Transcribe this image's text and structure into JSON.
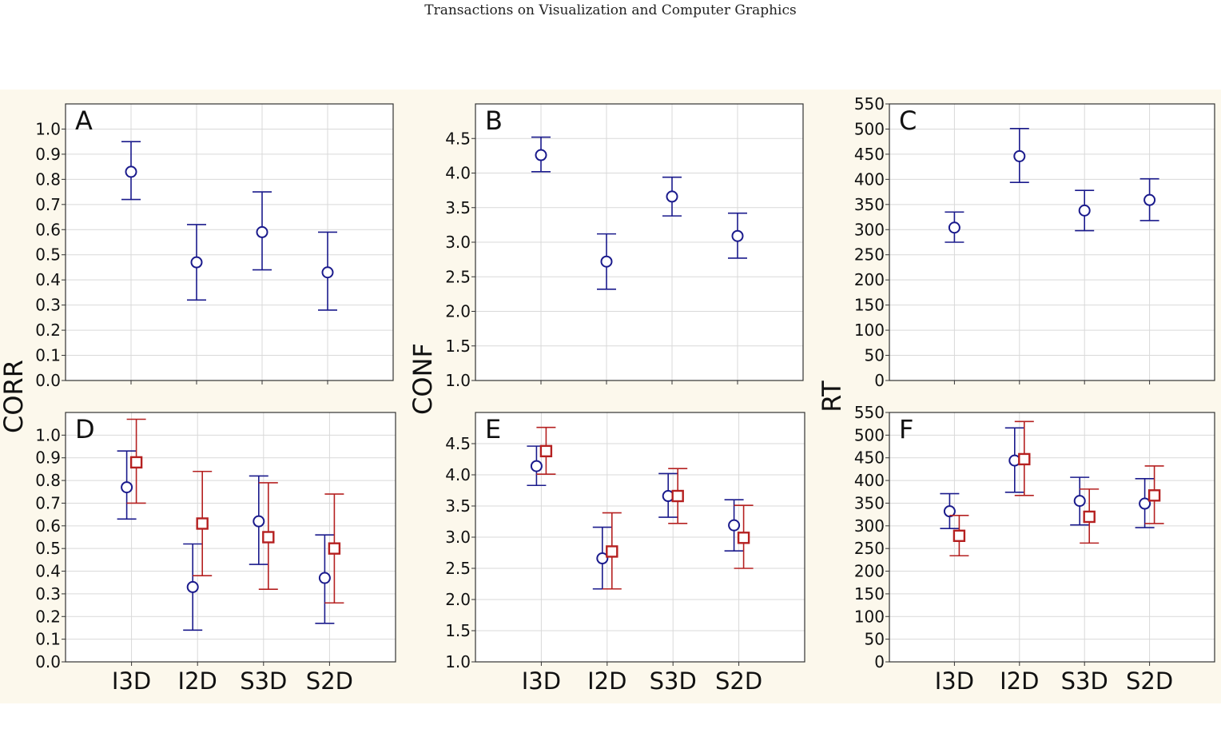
{
  "header": {
    "title": "Transactions on Visualization and Computer Graphics"
  },
  "colors": {
    "blue": "#1a1a8c",
    "red": "#b52020",
    "grid": "#d9d9d9",
    "plot_bg": "#ffffff",
    "figure_bg": "#fcf8ec"
  },
  "chart_data": [
    {
      "panel": "A",
      "type": "errorbar",
      "ylabel": "CORR",
      "categories": [
        "I3D",
        "I2D",
        "S3D",
        "S2D"
      ],
      "ylim": [
        0,
        1.1
      ],
      "yticks": [
        0.0,
        0.1,
        0.2,
        0.3,
        0.4,
        0.5,
        0.6,
        0.7,
        0.8,
        0.9,
        1.0
      ],
      "ytick_labels": [
        "0.0",
        "0.1",
        "0.2",
        "0.3",
        "0.4",
        "0.5",
        "0.6",
        "0.7",
        "0.8",
        "0.9",
        "1.0"
      ],
      "series": [
        {
          "marker": "circle",
          "color": "blue",
          "mean": [
            0.83,
            0.47,
            0.59,
            0.43
          ],
          "low": [
            0.72,
            0.32,
            0.44,
            0.28
          ],
          "high": [
            0.95,
            0.62,
            0.75,
            0.59
          ]
        }
      ]
    },
    {
      "panel": "B",
      "type": "errorbar",
      "ylabel": "CONF",
      "categories": [
        "I3D",
        "I2D",
        "S3D",
        "S2D"
      ],
      "ylim": [
        1.0,
        5.0
      ],
      "yticks": [
        1.0,
        1.5,
        2.0,
        2.5,
        3.0,
        3.5,
        4.0,
        4.5
      ],
      "ytick_labels": [
        "1.0",
        "1.5",
        "2.0",
        "2.5",
        "3.0",
        "3.5",
        "4.0",
        "4.5"
      ],
      "series": [
        {
          "marker": "circle",
          "color": "blue",
          "mean": [
            4.26,
            2.72,
            3.66,
            3.09
          ],
          "low": [
            4.02,
            2.32,
            3.38,
            2.77
          ],
          "high": [
            4.52,
            3.12,
            3.94,
            3.42
          ]
        }
      ]
    },
    {
      "panel": "C",
      "type": "errorbar",
      "ylabel": "RT",
      "categories": [
        "I3D",
        "I2D",
        "S3D",
        "S2D"
      ],
      "ylim": [
        0,
        550
      ],
      "yticks": [
        0,
        50,
        100,
        150,
        200,
        250,
        300,
        350,
        400,
        450,
        500,
        550
      ],
      "ytick_labels": [
        "0",
        "50",
        "100",
        "150",
        "200",
        "250",
        "300",
        "350",
        "400",
        "450",
        "500",
        "550"
      ],
      "series": [
        {
          "marker": "circle",
          "color": "blue",
          "mean": [
            304,
            446,
            338,
            359
          ],
          "low": [
            275,
            394,
            298,
            318
          ],
          "high": [
            335,
            501,
            378,
            401
          ]
        }
      ]
    },
    {
      "panel": "D",
      "type": "errorbar",
      "ylabel": "CORR",
      "categories": [
        "I3D",
        "I2D",
        "S3D",
        "S2D"
      ],
      "ylim": [
        0,
        1.1
      ],
      "yticks": [
        0.0,
        0.1,
        0.2,
        0.3,
        0.4,
        0.5,
        0.6,
        0.7,
        0.8,
        0.9,
        1.0
      ],
      "ytick_labels": [
        "0.0",
        "0.1",
        "0.2",
        "0.3",
        "0.4",
        "0.5",
        "0.6",
        "0.7",
        "0.8",
        "0.9",
        "1.0"
      ],
      "series": [
        {
          "marker": "circle",
          "color": "blue",
          "mean": [
            0.77,
            0.33,
            0.62,
            0.37
          ],
          "low": [
            0.63,
            0.14,
            0.43,
            0.17
          ],
          "high": [
            0.93,
            0.52,
            0.82,
            0.56
          ]
        },
        {
          "marker": "square",
          "color": "red",
          "mean": [
            0.88,
            0.61,
            0.55,
            0.5
          ],
          "low": [
            0.7,
            0.38,
            0.32,
            0.26
          ],
          "high": [
            1.07,
            0.84,
            0.79,
            0.74
          ]
        }
      ]
    },
    {
      "panel": "E",
      "type": "errorbar",
      "ylabel": "CONF",
      "categories": [
        "I3D",
        "I2D",
        "S3D",
        "S2D"
      ],
      "ylim": [
        1.0,
        5.0
      ],
      "yticks": [
        1.0,
        1.5,
        2.0,
        2.5,
        3.0,
        3.5,
        4.0,
        4.5
      ],
      "ytick_labels": [
        "1.0",
        "1.5",
        "2.0",
        "2.5",
        "3.0",
        "3.5",
        "4.0",
        "4.5"
      ],
      "series": [
        {
          "marker": "circle",
          "color": "blue",
          "mean": [
            4.14,
            2.66,
            3.66,
            3.19
          ],
          "low": [
            3.83,
            2.17,
            3.32,
            2.78
          ],
          "high": [
            4.46,
            3.16,
            4.02,
            3.6
          ]
        },
        {
          "marker": "square",
          "color": "red",
          "mean": [
            4.38,
            2.77,
            3.66,
            2.99
          ],
          "low": [
            4.01,
            2.17,
            3.22,
            2.5
          ],
          "high": [
            4.76,
            3.39,
            4.1,
            3.51
          ]
        }
      ]
    },
    {
      "panel": "F",
      "type": "errorbar",
      "ylabel": "RT",
      "categories": [
        "I3D",
        "I2D",
        "S3D",
        "S2D"
      ],
      "ylim": [
        0,
        550
      ],
      "yticks": [
        0,
        50,
        100,
        150,
        200,
        250,
        300,
        350,
        400,
        450,
        500,
        550
      ],
      "ytick_labels": [
        "0",
        "50",
        "100",
        "150",
        "200",
        "250",
        "300",
        "350",
        "400",
        "450",
        "500",
        "550"
      ],
      "series": [
        {
          "marker": "circle",
          "color": "blue",
          "mean": [
            332,
            444,
            355,
            349
          ],
          "low": [
            294,
            374,
            302,
            296
          ],
          "high": [
            371,
            516,
            407,
            404
          ]
        },
        {
          "marker": "square",
          "color": "red",
          "mean": [
            278,
            447,
            320,
            367
          ],
          "low": [
            234,
            367,
            262,
            305
          ],
          "high": [
            323,
            530,
            381,
            432
          ]
        }
      ]
    }
  ]
}
